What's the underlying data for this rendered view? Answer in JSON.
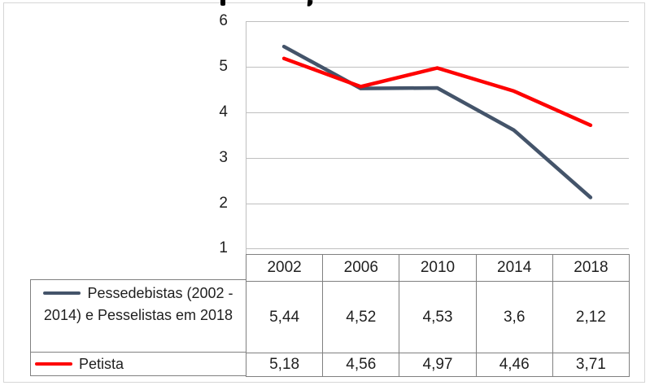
{
  "chart_data": {
    "type": "line",
    "categories": [
      "2002",
      "2006",
      "2010",
      "2014",
      "2018"
    ],
    "series": [
      {
        "name": "Pessedebistas (2002 - 2014) e Pesselistas em 2018",
        "color": "#44546a",
        "values": [
          5.44,
          4.52,
          4.53,
          3.6,
          2.12
        ],
        "display_values": [
          "5,44",
          "4,52",
          "4,53",
          "3,6",
          "2,12"
        ]
      },
      {
        "name": "Petista",
        "color": "#fe0000",
        "values": [
          5.18,
          4.56,
          4.97,
          4.46,
          3.71
        ],
        "display_values": [
          "5,18",
          "4,56",
          "4,97",
          "4,46",
          "3,71"
        ]
      }
    ],
    "ylim": [
      1,
      6
    ],
    "ytick_labels": [
      "6",
      "5",
      "4",
      "3",
      "2",
      "1"
    ],
    "xlabel": "",
    "ylabel": "",
    "grid": true,
    "legend_position": "table-left",
    "decimal_separator": ","
  },
  "colors": {
    "gridline": "#bfbfbf",
    "table_border": "#808080",
    "frame_border": "#d6d6d6",
    "text": "#1f1f1f"
  }
}
